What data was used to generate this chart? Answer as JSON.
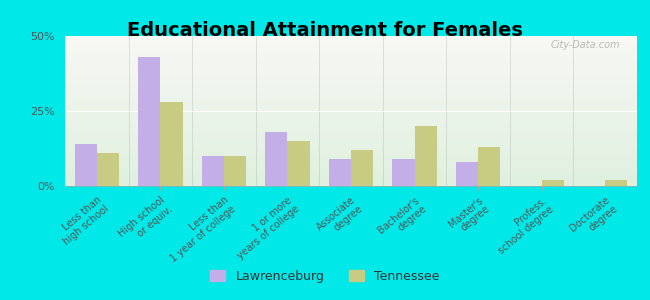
{
  "title": "Educational Attainment for Females",
  "categories": [
    "Less than\nhigh school",
    "High school\nor equiv.",
    "Less than\n1 year of college",
    "1 or more\nyears of college",
    "Associate\ndegree",
    "Bachelor's\ndegree",
    "Master's\ndegree",
    "Profess.\nschool degree",
    "Doctorate\ndegree"
  ],
  "lawrenceburg": [
    14,
    43,
    10,
    18,
    9,
    9,
    8,
    0,
    0
  ],
  "tennessee": [
    11,
    28,
    10,
    15,
    12,
    20,
    13,
    2,
    2
  ],
  "lawrenceburg_color": "#c4aee8",
  "tennessee_color": "#c8cc82",
  "outer_bg": "#00e8e8",
  "plot_bg_top": "#f8f8f4",
  "plot_bg_bottom": "#dff0df",
  "ylim": [
    0,
    50
  ],
  "yticks": [
    0,
    25,
    50
  ],
  "ytick_labels": [
    "0%",
    "25%",
    "50%"
  ],
  "bar_width": 0.35,
  "title_fontsize": 14,
  "tick_fontsize": 7,
  "legend_fontsize": 9,
  "watermark": "City-Data.com"
}
